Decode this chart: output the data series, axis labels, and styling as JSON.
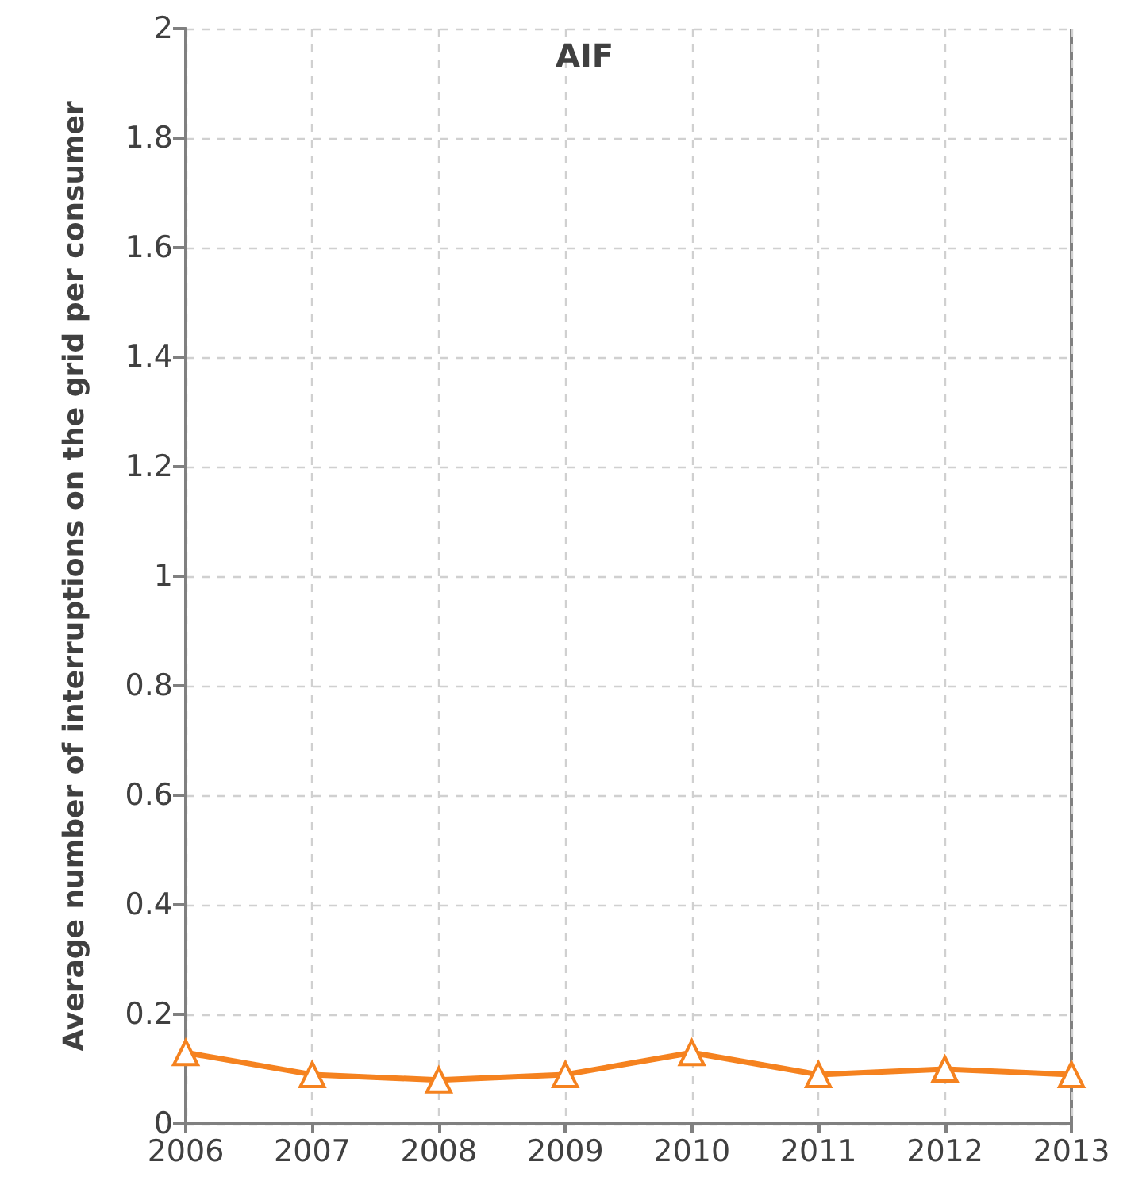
{
  "chart_data": {
    "type": "line",
    "title": "AIF",
    "ylabel": "Average number of interruptions on the grid per consumer",
    "x": [
      2006,
      2007,
      2008,
      2009,
      2010,
      2011,
      2012,
      2013
    ],
    "series": [
      {
        "color": "#f5821f",
        "values": [
          0.13,
          0.09,
          0.08,
          0.09,
          0.13,
          0.09,
          0.1,
          0.09
        ]
      }
    ],
    "xlim": [
      2006,
      2013
    ],
    "xticks": [
      2006,
      2007,
      2008,
      2009,
      2010,
      2011,
      2012,
      2013
    ],
    "ylim": [
      0,
      2
    ],
    "yticks": [
      0,
      0.2,
      0.4,
      0.6,
      0.8,
      1,
      1.2,
      1.4,
      1.6,
      1.8,
      2
    ],
    "grid": true,
    "marker": "triangle",
    "line_style": "solid"
  }
}
